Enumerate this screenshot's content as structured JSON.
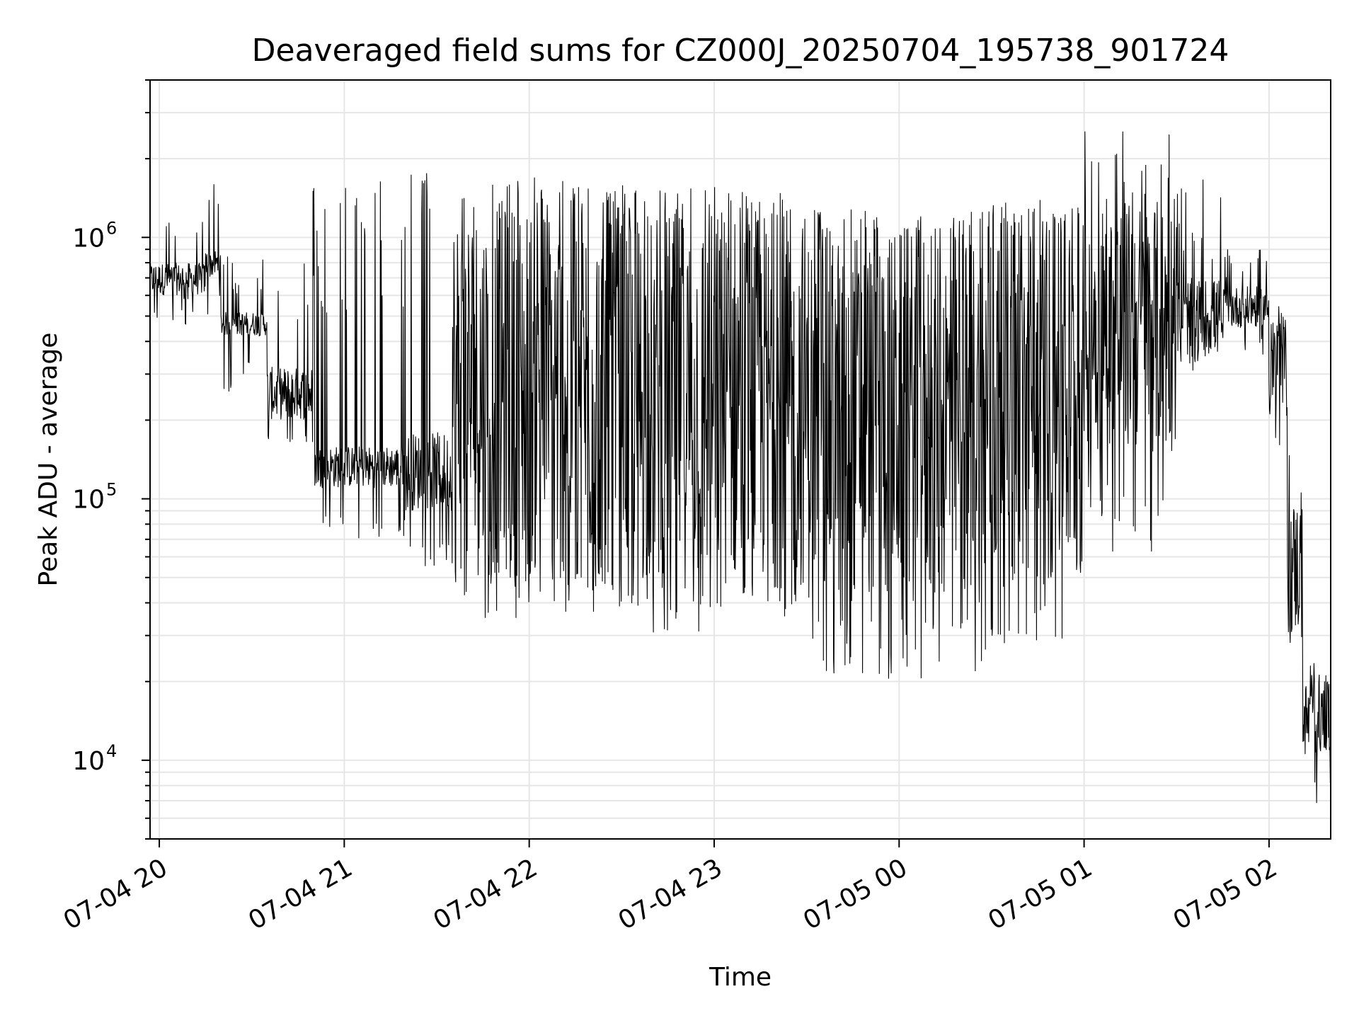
{
  "chart_data": {
    "type": "line",
    "title": "Deaveraged field sums for CZ000J_20250704_195738_901724",
    "xlabel": "Time",
    "ylabel": "Peak ADU - average",
    "y_scale": "log",
    "xlim": [
      "2025-07-04 19:57",
      "2025-07-05 02:20"
    ],
    "ylim": [
      5000,
      4000000
    ],
    "grid": true,
    "line_color": "#000000",
    "x_ticks": [
      {
        "value": "2025-07-04 20:00",
        "label": "07-04 20"
      },
      {
        "value": "2025-07-04 21:00",
        "label": "07-04 21"
      },
      {
        "value": "2025-07-04 22:00",
        "label": "07-04 22"
      },
      {
        "value": "2025-07-04 23:00",
        "label": "07-04 23"
      },
      {
        "value": "2025-07-05 00:00",
        "label": "07-05 00"
      },
      {
        "value": "2025-07-05 01:00",
        "label": "07-05 01"
      },
      {
        "value": "2025-07-05 02:00",
        "label": "07-05 02"
      }
    ],
    "y_ticks": [
      {
        "value": 10000,
        "base": "10",
        "exp": "4"
      },
      {
        "value": 100000,
        "base": "10",
        "exp": "5"
      },
      {
        "value": 1000000,
        "base": "10",
        "exp": "6"
      }
    ],
    "series": [
      {
        "name": "",
        "segments": [
          {
            "start": "2025-07-04 19:57",
            "end": "2025-07-04 20:15",
            "base_lo": 600000,
            "base_hi": 800000,
            "low_lo": 450000,
            "low_hi": 600000,
            "peak_lo": 900000,
            "peak_hi": 1300000
          },
          {
            "start": "2025-07-04 20:15",
            "end": "2025-07-04 20:20",
            "base_lo": 700000,
            "base_hi": 900000,
            "low_lo": 500000,
            "low_hi": 600000,
            "peak_lo": 1300000,
            "peak_hi": 1600000
          },
          {
            "start": "2025-07-04 20:20",
            "end": "2025-07-04 20:35",
            "base_lo": 420000,
            "base_hi": 520000,
            "low_lo": 250000,
            "low_hi": 350000,
            "peak_lo": 600000,
            "peak_hi": 900000
          },
          {
            "start": "2025-07-04 20:35",
            "end": "2025-07-04 20:50",
            "base_lo": 200000,
            "base_hi": 320000,
            "low_lo": 150000,
            "low_hi": 180000,
            "peak_lo": 400000,
            "peak_hi": 1700000
          },
          {
            "start": "2025-07-04 20:50",
            "end": "2025-07-04 21:20",
            "base_lo": 110000,
            "base_hi": 160000,
            "low_lo": 70000,
            "low_hi": 90000,
            "peak_lo": 500000,
            "peak_hi": 1800000
          },
          {
            "start": "2025-07-04 21:20",
            "end": "2025-07-04 21:35",
            "base_lo": 90000,
            "base_hi": 180000,
            "low_lo": 55000,
            "low_hi": 75000,
            "peak_lo": 1200000,
            "peak_hi": 1800000
          },
          {
            "start": "2025-07-04 21:35",
            "end": "2025-07-04 22:30",
            "base_lo": 50000,
            "base_hi": 1400000,
            "low_lo": 35000,
            "low_hi": 55000,
            "peak_lo": 1300000,
            "peak_hi": 1700000
          },
          {
            "start": "2025-07-04 22:30",
            "end": "2025-07-04 23:30",
            "base_lo": 45000,
            "base_hi": 1300000,
            "low_lo": 30000,
            "low_hi": 45000,
            "peak_lo": 1200000,
            "peak_hi": 1600000
          },
          {
            "start": "2025-07-04 23:30",
            "end": "2025-07-05 00:30",
            "base_lo": 40000,
            "base_hi": 1100000,
            "low_lo": 20000,
            "low_hi": 35000,
            "peak_lo": 1000000,
            "peak_hi": 1300000
          },
          {
            "start": "2025-07-05 00:30",
            "end": "2025-07-05 01:00",
            "base_lo": 45000,
            "base_hi": 1200000,
            "low_lo": 28000,
            "low_hi": 40000,
            "peak_lo": 1100000,
            "peak_hi": 1400000
          },
          {
            "start": "2025-07-05 01:00",
            "end": "2025-07-05 01:30",
            "base_lo": 150000,
            "base_hi": 1400000,
            "low_lo": 60000,
            "low_hi": 120000,
            "peak_lo": 1400000,
            "peak_hi": 2700000
          },
          {
            "start": "2025-07-05 01:30",
            "end": "2025-07-05 01:45",
            "base_lo": 350000,
            "base_hi": 700000,
            "low_lo": 280000,
            "low_hi": 350000,
            "peak_lo": 800000,
            "peak_hi": 1700000
          },
          {
            "start": "2025-07-05 01:45",
            "end": "2025-07-05 02:00",
            "base_lo": 450000,
            "base_hi": 650000,
            "low_lo": 350000,
            "low_hi": 420000,
            "peak_lo": 700000,
            "peak_hi": 900000
          },
          {
            "start": "2025-07-05 02:00",
            "end": "2025-07-05 02:06",
            "base_lo": 200000,
            "base_hi": 500000,
            "low_lo": 150000,
            "low_hi": 200000,
            "peak_lo": 400000,
            "peak_hi": 550000
          },
          {
            "start": "2025-07-05 02:06",
            "end": "2025-07-05 02:11",
            "base_lo": 30000,
            "base_hi": 100000,
            "low_lo": 25000,
            "low_hi": 30000,
            "peak_lo": 100000,
            "peak_hi": 150000
          },
          {
            "start": "2025-07-05 02:11",
            "end": "2025-07-05 02:20",
            "base_lo": 10000,
            "base_hi": 20000,
            "low_lo": 6500,
            "low_hi": 9000,
            "peak_lo": 20000,
            "peak_hi": 25000
          }
        ]
      }
    ]
  }
}
